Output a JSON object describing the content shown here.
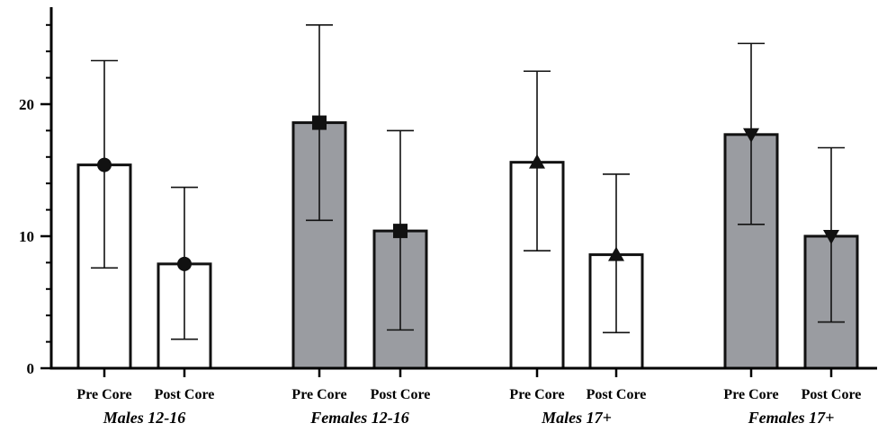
{
  "chart_data": {
    "type": "bar",
    "title": "",
    "xlabel": "",
    "ylabel": "",
    "ylim": [
      0,
      27
    ],
    "yticks": [
      0,
      10,
      20
    ],
    "grid": false,
    "colors": {
      "open_fill": "#ffffff",
      "shaded_fill": "#9a9ca1",
      "stroke": "#111111"
    },
    "groups": [
      {
        "label": "Males 12-16",
        "marker": "circle",
        "fill": "open",
        "bars": [
          {
            "label": "Pre Core",
            "value": 15.4,
            "err_low": 7.6,
            "err_high": 23.3
          },
          {
            "label": "Post Core",
            "value": 7.9,
            "err_low": 2.2,
            "err_high": 13.7
          }
        ]
      },
      {
        "label": "Females 12-16",
        "marker": "square",
        "fill": "shaded",
        "bars": [
          {
            "label": "Pre Core",
            "value": 18.6,
            "err_low": 11.2,
            "err_high": 26.0
          },
          {
            "label": "Post Core",
            "value": 10.4,
            "err_low": 2.9,
            "err_high": 18.0
          }
        ]
      },
      {
        "label": "Males 17+",
        "marker": "triangle-up",
        "fill": "open",
        "bars": [
          {
            "label": "Pre Core",
            "value": 15.6,
            "err_low": 8.9,
            "err_high": 22.5
          },
          {
            "label": "Post Core",
            "value": 8.6,
            "err_low": 2.7,
            "err_high": 14.7
          }
        ]
      },
      {
        "label": "Females 17+",
        "marker": "triangle-down",
        "fill": "shaded",
        "bars": [
          {
            "label": "Pre Core",
            "value": 17.7,
            "err_low": 10.9,
            "err_high": 24.6
          },
          {
            "label": "Post Core",
            "value": 10.0,
            "err_low": 3.5,
            "err_high": 16.7
          }
        ]
      }
    ]
  }
}
